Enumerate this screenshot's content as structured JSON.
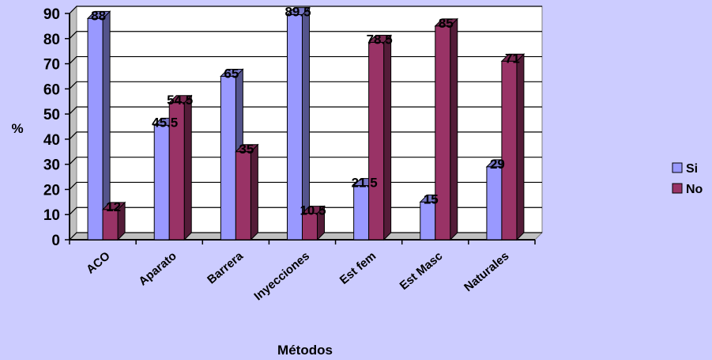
{
  "chart_data": {
    "type": "bar",
    "title": "",
    "xlabel": "Métodos",
    "ylabel": "%",
    "ylim": [
      0,
      90
    ],
    "yticks": [
      0,
      10,
      20,
      30,
      40,
      50,
      60,
      70,
      80,
      90
    ],
    "grid": true,
    "legend_position": "right",
    "categories": [
      "ACO",
      "Aparato",
      "Barrera",
      "Inyecciones",
      "Est fem",
      "Est Masc",
      "Naturales"
    ],
    "series": [
      {
        "name": "Si",
        "color": "#9999ff",
        "values": [
          88,
          45.5,
          65,
          89.5,
          21.5,
          15,
          29
        ]
      },
      {
        "name": "No",
        "color": "#993366",
        "values": [
          12,
          54.5,
          35,
          10.5,
          78.5,
          85,
          71
        ]
      }
    ],
    "data_labels": [
      [
        "88",
        "45.5",
        "65",
        "89.5",
        "21.5",
        "15",
        "29"
      ],
      [
        "12",
        "54.5",
        "35",
        "10.5",
        "78.5",
        "85",
        "71"
      ]
    ]
  }
}
